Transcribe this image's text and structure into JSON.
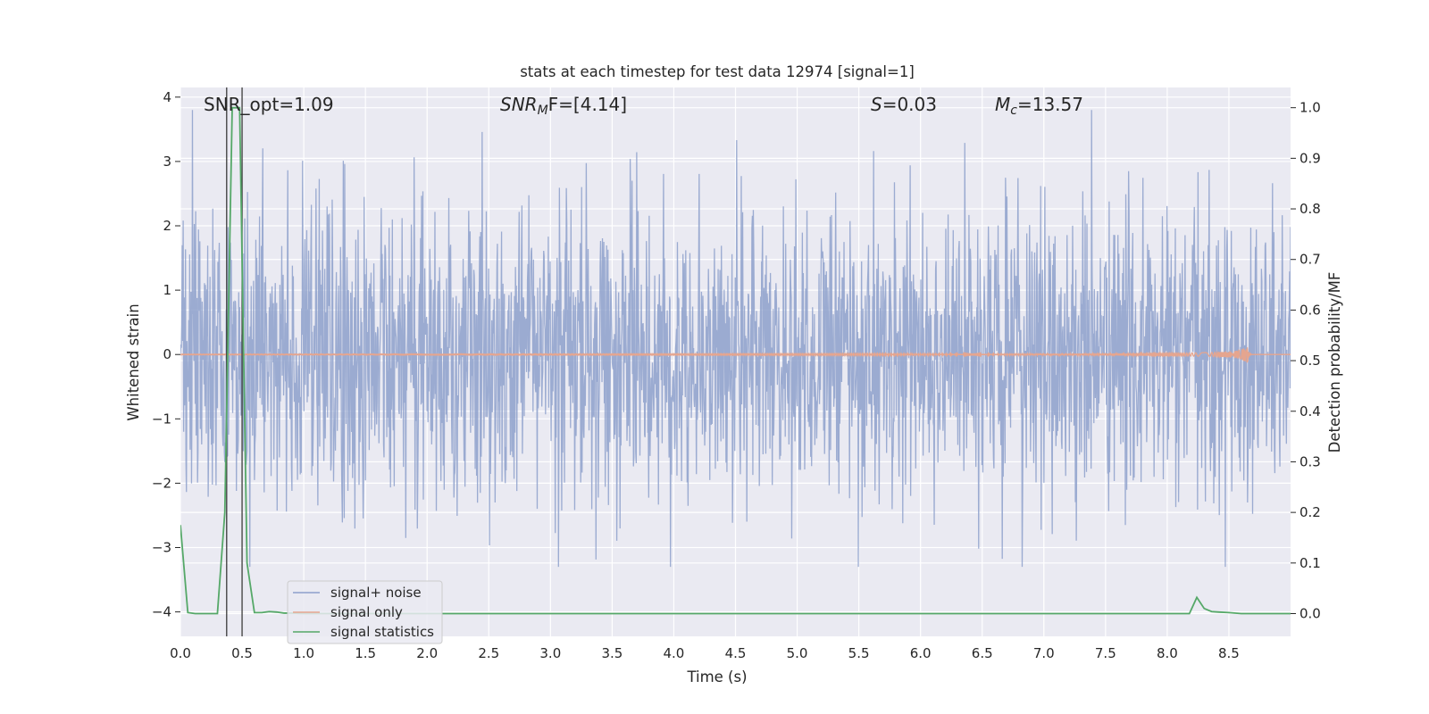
{
  "chart_data": {
    "type": "line",
    "title": "stats at each timestep for test data 12974 [signal=1]",
    "xlabel": "Time (s)",
    "ylabel_left": "Whitened strain",
    "ylabel_right": "Detection probability/MF",
    "xlim": [
      0.0,
      9.0
    ],
    "ylim_left": [
      -4.38,
      4.15
    ],
    "ylim_right": [
      -0.045,
      1.04
    ],
    "x_ticks": [
      "0.0",
      "0.5",
      "1.0",
      "1.5",
      "2.0",
      "2.5",
      "3.0",
      "3.5",
      "4.0",
      "4.5",
      "5.0",
      "5.5",
      "6.0",
      "6.5",
      "7.0",
      "7.5",
      "8.0",
      "8.5"
    ],
    "y_left_ticks": [
      "−4",
      "−3",
      "−2",
      "−1",
      "0",
      "1",
      "2",
      "3",
      "4"
    ],
    "y_right_ticks": [
      "0.0",
      "0.1",
      "0.2",
      "0.3",
      "0.4",
      "0.5",
      "0.6",
      "0.7",
      "0.8",
      "0.9",
      "1.0"
    ],
    "right_hgrid_at": [
      0.0,
      0.1,
      0.2,
      0.3,
      0.4,
      0.5,
      0.6,
      0.7,
      0.8,
      0.9,
      1.0
    ],
    "grid": true,
    "legend_placement": "lower-left",
    "annotations": {
      "snr_opt": "SNR_opt=1.09",
      "snr_mf_base": "SNR",
      "snr_mf_sub": "M",
      "snr_mf_rest": "F=[4.14]",
      "s_italic": "S",
      "s_rest": "=0.03",
      "mc_base": "M",
      "mc_sub": "c",
      "mc_rest": "=13.57"
    },
    "vlines_x": [
      0.375,
      0.5
    ],
    "series": [
      {
        "name": "signal+ noise",
        "axis": "left",
        "color": "#8da0cb",
        "kind": "noise",
        "envelope_std": 1.0,
        "typical_peak_range": [
          -3.3,
          3.8
        ]
      },
      {
        "name": "signal only",
        "axis": "left",
        "color": "#e5a58f",
        "kind": "chirp",
        "peak_time": 8.65,
        "peak_amplitude": 0.17
      },
      {
        "name": "signal statistics",
        "axis": "right",
        "color": "#55a868",
        "x": [
          0.0,
          0.06,
          0.12,
          0.18,
          0.24,
          0.3,
          0.36,
          0.42,
          0.48,
          0.54,
          0.6,
          0.66,
          0.72,
          0.78,
          0.84,
          0.9,
          1.0,
          1.5,
          2.0,
          3.0,
          4.0,
          5.0,
          6.0,
          7.0,
          8.0,
          8.18,
          8.24,
          8.3,
          8.36,
          8.42,
          8.5,
          8.6,
          8.7,
          9.0
        ],
        "values": [
          0.175,
          0.002,
          0.0,
          0.0,
          0.0,
          0.0,
          0.2,
          1.0,
          1.0,
          0.1,
          0.002,
          0.002,
          0.004,
          0.003,
          0.001,
          0.001,
          0.0,
          0.0,
          0.0,
          0.0,
          0.0,
          0.0,
          0.0,
          0.0,
          0.0,
          0.0,
          0.032,
          0.01,
          0.004,
          0.003,
          0.002,
          0.0,
          0.0,
          0.0
        ]
      }
    ]
  }
}
